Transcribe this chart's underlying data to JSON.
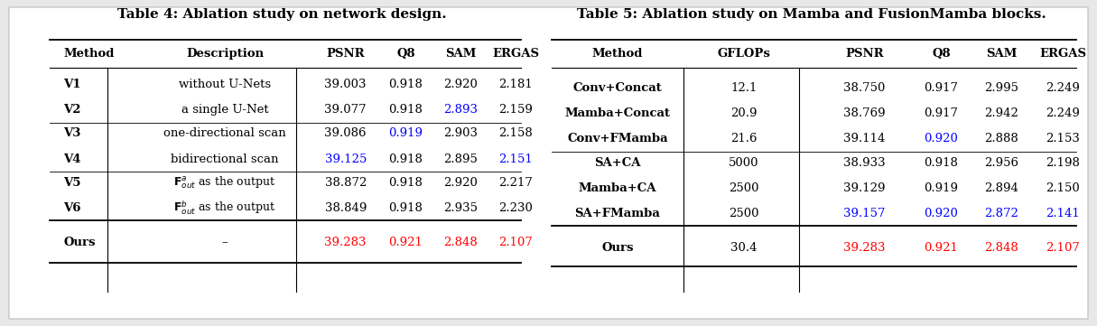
{
  "table4": {
    "title": "Table 4: Ablation study on network design.",
    "headers": [
      "Method",
      "Description",
      "PSNR",
      "Q8",
      "SAM",
      "ERGAS"
    ],
    "groups": [
      {
        "rows": [
          {
            "method": "V1",
            "desc": "without U-Nets",
            "psnr": "39.003",
            "q8": "0.918",
            "sam": "2.920",
            "ergas": "2.181",
            "colors": [
              "k",
              "k",
              "k",
              "k",
              "k",
              "k"
            ]
          },
          {
            "method": "V2",
            "desc": "a single U-Net",
            "psnr": "39.077",
            "q8": "0.918",
            "sam": "2.893",
            "ergas": "2.159",
            "colors": [
              "k",
              "k",
              "k",
              "k",
              "blue",
              "k"
            ]
          }
        ]
      },
      {
        "rows": [
          {
            "method": "V3",
            "desc": "one-directional scan",
            "psnr": "39.086",
            "q8": "0.919",
            "sam": "2.903",
            "ergas": "2.158",
            "colors": [
              "k",
              "k",
              "k",
              "blue",
              "k",
              "k"
            ]
          },
          {
            "method": "V4",
            "desc": "bidirectional scan",
            "psnr": "39.125",
            "q8": "0.918",
            "sam": "2.895",
            "ergas": "2.151",
            "colors": [
              "k",
              "k",
              "blue",
              "k",
              "k",
              "blue"
            ]
          }
        ]
      },
      {
        "rows": [
          {
            "method": "V5",
            "desc": "F_out^a as the output",
            "psnr": "38.872",
            "q8": "0.918",
            "sam": "2.920",
            "ergas": "2.217",
            "colors": [
              "k",
              "k",
              "k",
              "k",
              "k",
              "k"
            ]
          },
          {
            "method": "V6",
            "desc": "F_out^b as the output",
            "psnr": "38.849",
            "q8": "0.918",
            "sam": "2.935",
            "ergas": "2.230",
            "colors": [
              "k",
              "k",
              "k",
              "k",
              "k",
              "k"
            ]
          }
        ]
      }
    ],
    "ours": {
      "method": "Ours",
      "desc": "–",
      "psnr": "39.283",
      "q8": "0.921",
      "sam": "2.848",
      "ergas": "2.107",
      "colors": [
        "k",
        "k",
        "red",
        "red",
        "red",
        "red"
      ]
    }
  },
  "table5": {
    "title": "Table 5: Ablation study on Mamba and FusionMamba blocks.",
    "headers": [
      "Method",
      "GFLOPs",
      "PSNR",
      "Q8",
      "SAM",
      "ERGAS"
    ],
    "groups": [
      {
        "rows": [
          {
            "method": "Conv+Concat",
            "gflops": "12.1",
            "psnr": "38.750",
            "q8": "0.917",
            "sam": "2.995",
            "ergas": "2.249",
            "colors": [
              "k",
              "k",
              "k",
              "k",
              "k",
              "k"
            ]
          },
          {
            "method": "Mamba+Concat",
            "gflops": "20.9",
            "psnr": "38.769",
            "q8": "0.917",
            "sam": "2.942",
            "ergas": "2.249",
            "colors": [
              "k",
              "k",
              "k",
              "k",
              "k",
              "k"
            ]
          },
          {
            "method": "Conv+FMamba",
            "gflops": "21.6",
            "psnr": "39.114",
            "q8": "0.920",
            "sam": "2.888",
            "ergas": "2.153",
            "colors": [
              "k",
              "k",
              "k",
              "blue",
              "k",
              "k"
            ]
          }
        ]
      },
      {
        "rows": [
          {
            "method": "SA+CA",
            "gflops": "5000",
            "psnr": "38.933",
            "q8": "0.918",
            "sam": "2.956",
            "ergas": "2.198",
            "colors": [
              "k",
              "k",
              "k",
              "k",
              "k",
              "k"
            ]
          },
          {
            "method": "Mamba+CA",
            "gflops": "2500",
            "psnr": "39.129",
            "q8": "0.919",
            "sam": "2.894",
            "ergas": "2.150",
            "colors": [
              "k",
              "k",
              "k",
              "k",
              "k",
              "k"
            ]
          },
          {
            "method": "SA+FMamba",
            "gflops": "2500",
            "psnr": "39.157",
            "q8": "0.920",
            "sam": "2.872",
            "ergas": "2.141",
            "colors": [
              "k",
              "k",
              "blue",
              "blue",
              "blue",
              "blue"
            ]
          }
        ]
      }
    ],
    "ours": {
      "method": "Ours",
      "gflops": "30.4",
      "psnr": "39.283",
      "q8": "0.921",
      "sam": "2.848",
      "ergas": "2.107",
      "colors": [
        "k",
        "k",
        "red",
        "red",
        "red",
        "red"
      ]
    }
  },
  "bg_color": "#e8e8e8",
  "font_size": 9.5,
  "title_font_size": 11.0
}
